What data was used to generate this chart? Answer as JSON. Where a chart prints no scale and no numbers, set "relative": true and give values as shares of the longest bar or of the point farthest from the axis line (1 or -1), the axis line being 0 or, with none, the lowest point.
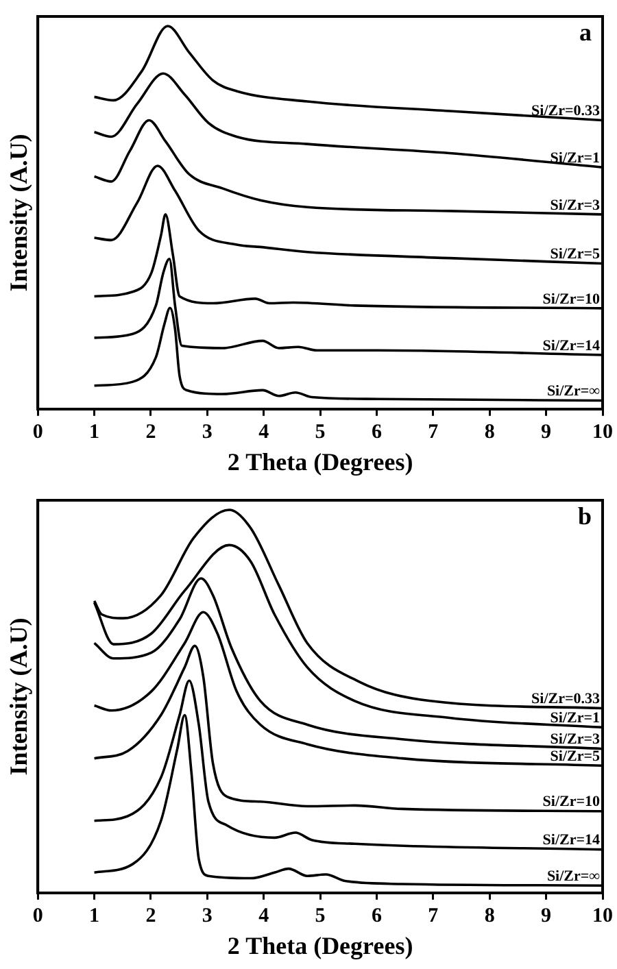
{
  "chart_data": [
    {
      "type": "line",
      "title": "a",
      "xlabel": "2 Theta (Degrees)",
      "ylabel": "Intensity (A.U)",
      "relative": true,
      "xlim": [
        0,
        10
      ],
      "xticks": [
        0,
        1,
        2,
        3,
        4,
        5,
        6,
        7,
        8,
        9,
        10
      ],
      "tick_labels": "x",
      "grid": false,
      "legend": false,
      "marker": "none",
      "line_style": "solid",
      "series": [
        {
          "name": "Si/Zr=0.33",
          "color": "#000000",
          "x": [
            1.0,
            1.34,
            1.84,
            2.3,
            2.68,
            3.1,
            3.52,
            4.77,
            7.29,
            10.0
          ],
          "values": [
            0.815,
            0.806,
            0.882,
            1.0,
            0.931,
            0.858,
            0.83,
            0.803,
            0.778,
            0.754
          ]
        },
        {
          "name": "Si/Zr=1",
          "color": "#000000",
          "x": [
            1.0,
            1.3,
            1.76,
            2.22,
            2.6,
            3.02,
            3.52,
            4.77,
            7.29,
            10.0
          ],
          "values": [
            0.723,
            0.711,
            0.797,
            0.876,
            0.821,
            0.747,
            0.711,
            0.692,
            0.668,
            0.631
          ]
        },
        {
          "name": "Si/Zr=3",
          "color": "#000000",
          "x": [
            1.0,
            1.3,
            1.63,
            1.97,
            2.26,
            2.68,
            3.27,
            3.94,
            4.77,
            7.29,
            10.0
          ],
          "values": [
            0.607,
            0.594,
            0.674,
            0.754,
            0.699,
            0.613,
            0.576,
            0.545,
            0.527,
            0.517,
            0.508
          ]
        },
        {
          "name": "Si/Zr=5",
          "color": "#000000",
          "x": [
            1.0,
            1.3,
            1.76,
            2.12,
            2.43,
            2.85,
            3.52,
            3.94,
            4.77,
            7.29,
            10.0
          ],
          "values": [
            0.447,
            0.441,
            0.539,
            0.635,
            0.57,
            0.466,
            0.429,
            0.423,
            0.41,
            0.394,
            0.38
          ]
        },
        {
          "name": "Si/Zr=10",
          "color": "#000000",
          "x": [
            1.0,
            1.68,
            2.01,
            2.18,
            2.26,
            2.39,
            2.51,
            3.1,
            3.85,
            4.1,
            4.52,
            5.61,
            10.0
          ],
          "values": [
            0.294,
            0.306,
            0.355,
            0.453,
            0.508,
            0.404,
            0.294,
            0.276,
            0.288,
            0.276,
            0.278,
            0.27,
            0.263
          ]
        },
        {
          "name": "Si/Zr=14",
          "color": "#000000",
          "x": [
            1.0,
            1.68,
            2.09,
            2.22,
            2.33,
            2.43,
            2.55,
            3.27,
            3.98,
            4.27,
            4.61,
            4.94,
            6.03,
            10.0
          ],
          "values": [
            0.186,
            0.196,
            0.27,
            0.355,
            0.392,
            0.27,
            0.165,
            0.159,
            0.178,
            0.159,
            0.162,
            0.153,
            0.153,
            0.141
          ]
        },
        {
          "name": "Si/Zr=∞",
          "color": "#000000",
          "x": [
            1.0,
            1.68,
            2.09,
            2.24,
            2.34,
            2.43,
            2.51,
            2.64,
            3.27,
            3.98,
            4.27,
            4.56,
            4.85,
            6.03,
            10.0
          ],
          "values": [
            0.061,
            0.071,
            0.135,
            0.221,
            0.264,
            0.208,
            0.086,
            0.049,
            0.039,
            0.049,
            0.034,
            0.043,
            0.031,
            0.026,
            0.022
          ]
        }
      ]
    },
    {
      "type": "line",
      "title": "b",
      "xlabel": "2 Theta (Degrees)",
      "ylabel": "Intensity (A.U)",
      "relative": true,
      "xlim": [
        0,
        10
      ],
      "xticks": [
        0,
        1,
        2,
        3,
        4,
        5,
        6,
        7,
        8,
        9,
        10
      ],
      "tick_labels": "x",
      "grid": false,
      "legend": false,
      "marker": "none",
      "line_style": "solid",
      "series": [
        {
          "name": "Si/Zr=0.33",
          "color": "#000000",
          "x": [
            1.0,
            1.13,
            1.51,
            2.18,
            2.76,
            3.39,
            3.77,
            4.27,
            4.77,
            5.69,
            6.95,
            10.0
          ],
          "values": [
            0.762,
            0.727,
            0.717,
            0.777,
            0.927,
            1.0,
            0.952,
            0.802,
            0.652,
            0.551,
            0.501,
            0.482
          ]
        },
        {
          "name": "Si/Zr=1",
          "color": "#000000",
          "x": [
            1.0,
            1.34,
            2.01,
            2.6,
            3.39,
            3.77,
            4.19,
            4.77,
            5.61,
            7.29,
            10.0
          ],
          "values": [
            0.758,
            0.649,
            0.677,
            0.789,
            0.908,
            0.865,
            0.727,
            0.589,
            0.501,
            0.457,
            0.432
          ]
        },
        {
          "name": "Si/Zr=3",
          "color": "#000000",
          "x": [
            1.0,
            1.34,
            2.01,
            2.51,
            2.89,
            3.1,
            3.43,
            3.94,
            4.77,
            6.45,
            10.0
          ],
          "values": [
            0.652,
            0.612,
            0.627,
            0.714,
            0.821,
            0.777,
            0.639,
            0.501,
            0.439,
            0.401,
            0.376
          ]
        },
        {
          "name": "Si/Zr=5",
          "color": "#000000",
          "x": [
            1.0,
            1.3,
            2.01,
            2.6,
            2.93,
            3.18,
            3.52,
            3.94,
            4.77,
            6.45,
            10.0
          ],
          "values": [
            0.489,
            0.476,
            0.526,
            0.652,
            0.733,
            0.677,
            0.526,
            0.439,
            0.388,
            0.351,
            0.332
          ]
        },
        {
          "name": "Si/Zr=10",
          "color": "#000000",
          "x": [
            1.0,
            1.59,
            2.18,
            2.6,
            2.78,
            2.93,
            3.1,
            3.35,
            3.94,
            4.77,
            5.61,
            6.45,
            10.0
          ],
          "values": [
            0.351,
            0.37,
            0.464,
            0.589,
            0.645,
            0.564,
            0.338,
            0.251,
            0.238,
            0.226,
            0.228,
            0.219,
            0.213
          ]
        },
        {
          "name": "Si/Zr=14",
          "color": "#000000",
          "x": [
            1.0,
            1.59,
            2.18,
            2.51,
            2.68,
            2.85,
            3.02,
            3.35,
            4.19,
            4.56,
            4.85,
            5.61,
            10.0
          ],
          "values": [
            0.188,
            0.2,
            0.301,
            0.464,
            0.554,
            0.439,
            0.238,
            0.176,
            0.144,
            0.157,
            0.138,
            0.128,
            0.113
          ]
        },
        {
          "name": "Si/Zr=∞",
          "color": "#000000",
          "x": [
            1.0,
            1.68,
            2.18,
            2.47,
            2.6,
            2.72,
            2.85,
            3.02,
            3.77,
            4.19,
            4.44,
            4.77,
            5.1,
            5.44,
            6.45,
            10.0
          ],
          "values": [
            0.053,
            0.075,
            0.188,
            0.376,
            0.464,
            0.313,
            0.088,
            0.044,
            0.038,
            0.053,
            0.063,
            0.044,
            0.048,
            0.031,
            0.023,
            0.019
          ]
        }
      ]
    }
  ]
}
